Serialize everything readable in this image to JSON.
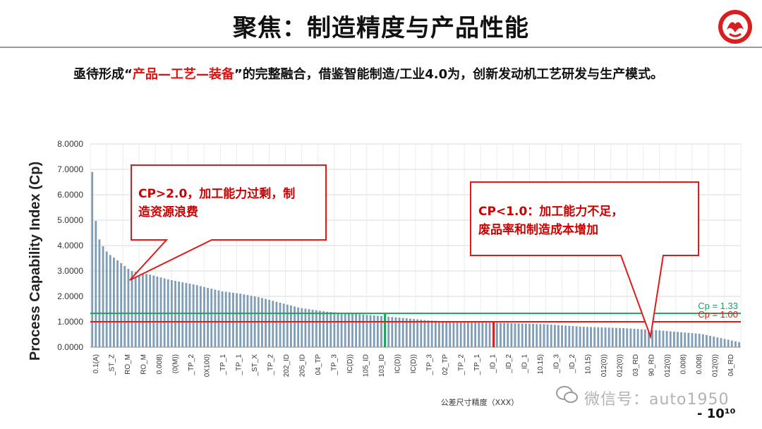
{
  "header": {
    "title": "聚焦：制造精度与产品性能"
  },
  "intro": {
    "part1": "亟待形成",
    "quote_open": "“",
    "red_text": "产品—工艺—装备",
    "quote_close": "”",
    "part2": "的完整融合，借鉴智能制造/工业4.0为，创新发动机工艺研发与生产模式。"
  },
  "callouts": {
    "left_line1": "CP>2.0，加工能力过剩，制",
    "left_line2": "造资源浪费",
    "right_line1": "CP<1.0：加工能力不足，",
    "right_line2": "废品率和制造成本增加"
  },
  "watermark": "微信号：auto1950",
  "page_number": "- 10¹⁰",
  "colors": {
    "bar": "#7f9db7",
    "ref_green": "#1aa35a",
    "ref_red": "#e01b1b",
    "callout_border": "#e01b1b",
    "callout_text": "#cc0000",
    "grid": "#d9d9d9"
  },
  "chart_data": {
    "type": "bar",
    "ylabel": "Process Capability Index (Cp)",
    "xlabel": "公差尺寸精度（XXX）",
    "ylim": [
      0,
      8
    ],
    "yticks": [
      "0.0000",
      "1.0000",
      "2.0000",
      "3.0000",
      "4.0000",
      "5.0000",
      "6.0000",
      "7.0000",
      "8.0000"
    ],
    "grid": true,
    "n_bars": 180,
    "anchors": [
      [
        0,
        6.9
      ],
      [
        1,
        6.6
      ],
      [
        2,
        5.6
      ],
      [
        3,
        4.8
      ],
      [
        4,
        4.4
      ],
      [
        5,
        4.3
      ],
      [
        8,
        4.0
      ],
      [
        12,
        3.7
      ],
      [
        20,
        3.4
      ],
      [
        30,
        3.0
      ],
      [
        45,
        2.85
      ],
      [
        60,
        2.65
      ],
      [
        80,
        2.45
      ],
      [
        100,
        2.2
      ],
      [
        115,
        2.1
      ],
      [
        130,
        1.95
      ],
      [
        145,
        1.75
      ],
      [
        160,
        1.55
      ],
      [
        180,
        1.4
      ],
      [
        210,
        1.28
      ],
      [
        240,
        1.15
      ],
      [
        260,
        1.05
      ],
      [
        290,
        0.98
      ],
      [
        320,
        0.95
      ],
      [
        350,
        0.9
      ],
      [
        380,
        0.8
      ],
      [
        410,
        0.75
      ],
      [
        440,
        0.65
      ],
      [
        470,
        0.52
      ],
      [
        499,
        0.2
      ]
    ],
    "anchor_domain": 499,
    "highlight_bars": [
      {
        "value": 1.35,
        "position_fraction": 0.453,
        "color": "#1aa35a"
      },
      {
        "value": 1.0,
        "position_fraction": 0.62,
        "color": "#e01b1b"
      }
    ],
    "reference_lines": [
      {
        "label": "Cp = 1.33",
        "value": 1.33,
        "color": "#1aa35a"
      },
      {
        "label": "Cp = 1.00",
        "value": 1.0,
        "color": "#e01b1b"
      }
    ],
    "categories": [
      "0.1(A)",
      "_ST_Z",
      "RO_M",
      "RO_M",
      "0.008)",
      "(0(M))",
      "_TP_2",
      "0X100)",
      "_TP_1",
      "_TP_1",
      "_ST_X",
      "_TP_2",
      "202_ID",
      "205_ID",
      "04_TP",
      "_TP_3",
      "IC(D))",
      "105_ID",
      "103_ID",
      "IC(D))",
      "IC(D))",
      "_TP_3",
      "02_TP",
      "_TP_2",
      "_TP_1",
      "_ID_1",
      "_ID_2",
      "_ID_1",
      "10.15)",
      "_ID_3",
      "_ID_2",
      "10.15)",
      "012(0))",
      "012(0))",
      "03_RD",
      "90_RD",
      "012(0))",
      "0.008)",
      "0.008)",
      "012(0))",
      "04_RD"
    ]
  }
}
